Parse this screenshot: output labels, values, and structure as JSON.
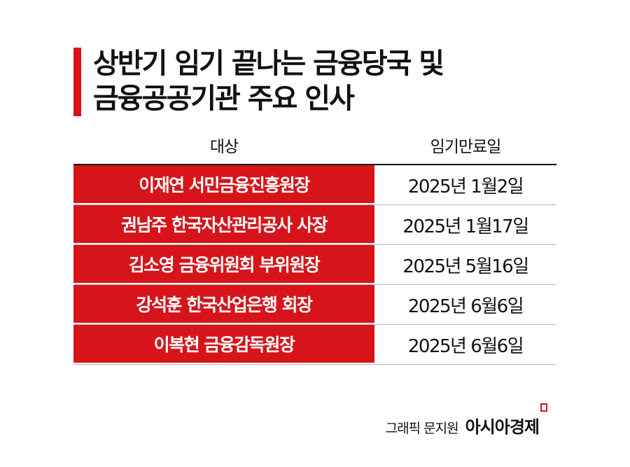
{
  "title": {
    "line1": "상반기 임기 끝나는 금융당국 및",
    "line2": "금융공공기관 주요 인사"
  },
  "table": {
    "headers": [
      "대상",
      "임기만료일"
    ],
    "rows": [
      {
        "target": "이재연 서민금융진흥원장",
        "end_date": "2025년 1월2일"
      },
      {
        "target": "권남주 한국자산관리공사 사장",
        "end_date": "2025년 1월17일"
      },
      {
        "target": "김소영 금융위원회 부위원장",
        "end_date": "2025년 5월16일"
      },
      {
        "target": "강석훈 한국산업은행 회장",
        "end_date": "2025년 6월6일"
      },
      {
        "target": "이복현 금융감독원장",
        "end_date": "2025년 6월6일"
      }
    ]
  },
  "credit": {
    "byline": "그래픽 문지원",
    "logo": "아시아경제"
  },
  "colors": {
    "accent": "#d7141a"
  }
}
